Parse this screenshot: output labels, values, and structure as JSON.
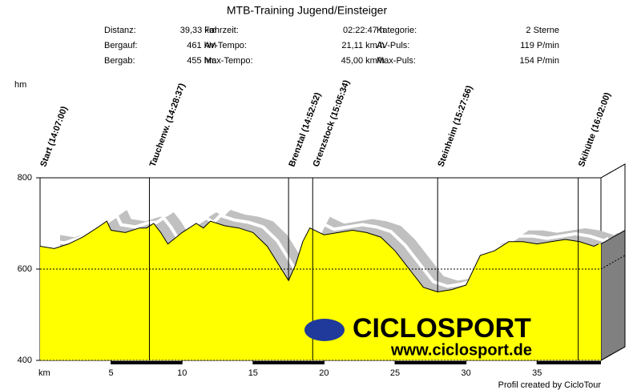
{
  "chart_data": {
    "type": "area",
    "title": "MTB-Training Jugend/Einsteiger",
    "stats": [
      [
        "Distanz:",
        "39,33 km",
        "Fahrzeit:",
        "02:22:47 h",
        "Kategorie:",
        "2 Sterne"
      ],
      [
        "Bergauf:",
        "461 hm",
        "AV-Tempo:",
        "21,11 km/h",
        "AV-Puls:",
        "119 P/min"
      ],
      [
        "Bergab:",
        "455 hm",
        "Max-Tempo:",
        "45,00 km/h",
        "Max-Puls:",
        "154 P/min"
      ]
    ],
    "y_label": "hm",
    "x_label": "km",
    "footer": "Profil created by CicloTour",
    "logo": "CICLOSPORT",
    "logo_url": "www.ciclosport.de",
    "waypoints": [
      {
        "name": "Start (14:07:00)",
        "km": 0
      },
      {
        "name": "Tauchenw. (14:28:37)",
        "km": 7.7
      },
      {
        "name": "Brenztal (14:52:52)",
        "km": 17.5
      },
      {
        "name": "Grenzstock (15:05:34)",
        "km": 19.2
      },
      {
        "name": "Steinheim (15:27:56)",
        "km": 28
      },
      {
        "name": "Skihütte (16:02:00)",
        "km": 37.9
      }
    ],
    "x": [
      0,
      1,
      2,
      3,
      4,
      4.7,
      5,
      6,
      7,
      7.5,
      8,
      8.5,
      9,
      10,
      11,
      11.5,
      12,
      13,
      14,
      15,
      16,
      17,
      17.5,
      18,
      18.5,
      19,
      20,
      21,
      22,
      23,
      24,
      25,
      26,
      27,
      28,
      29,
      30,
      31,
      32,
      33,
      34,
      35,
      36,
      37,
      38,
      39,
      39.33
    ],
    "values": [
      650,
      645,
      655,
      670,
      690,
      705,
      685,
      680,
      690,
      690,
      700,
      680,
      655,
      680,
      700,
      690,
      705,
      695,
      690,
      680,
      650,
      600,
      575,
      610,
      660,
      690,
      675,
      680,
      685,
      680,
      670,
      640,
      600,
      560,
      550,
      555,
      565,
      630,
      640,
      660,
      660,
      655,
      660,
      665,
      660,
      650,
      655
    ],
    "color": "#ffff00",
    "shadow_color": "#c0c0c0",
    "xlim": [
      0,
      39.5
    ],
    "ylim": [
      400,
      800
    ],
    "xticks": [
      5,
      10,
      15,
      20,
      25,
      30,
      35
    ],
    "yticks": [
      400,
      600,
      800
    ],
    "grid": true
  }
}
